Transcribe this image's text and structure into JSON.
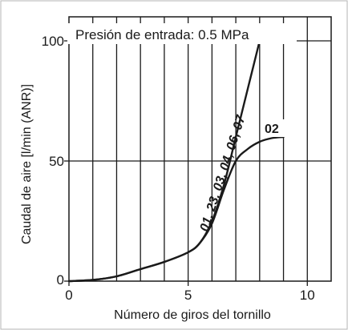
{
  "chart_data": {
    "type": "line",
    "xlabel": "Número de giros del tornillo",
    "ylabel": "Caudal de aire [l/min (ANR)]",
    "annotation": "Presión de entrada: 0.5 MPa",
    "xlim": [
      0,
      11
    ],
    "ylim": [
      0,
      110
    ],
    "x_ticks": [
      "0",
      "5",
      "10"
    ],
    "x_tick_values": [
      0,
      5,
      10
    ],
    "y_ticks": [
      "0",
      "50",
      "100"
    ],
    "y_tick_values": [
      0,
      50,
      100
    ],
    "vertical_grid": [
      1,
      2,
      3,
      4,
      5,
      6,
      7,
      8,
      9,
      10
    ],
    "horizontal_grid": [
      50,
      100
    ],
    "series": [
      {
        "name": "01, 23, 03, 04, 06, 07",
        "x": [
          0,
          1,
          2,
          3,
          4,
          5,
          5.5,
          6,
          6.5,
          7,
          7.5,
          8
        ],
        "y": [
          0,
          0.5,
          2,
          5,
          8,
          12,
          16,
          25,
          40,
          60,
          80,
          100
        ]
      },
      {
        "name": "02",
        "x": [
          0,
          1,
          2,
          3,
          4,
          5,
          5.5,
          6,
          6.5,
          7,
          7.5,
          8,
          8.5,
          9
        ],
        "y": [
          0,
          0.5,
          2,
          5,
          8,
          12,
          16,
          24,
          38,
          50,
          55,
          58,
          59.5,
          60
        ]
      }
    ]
  }
}
